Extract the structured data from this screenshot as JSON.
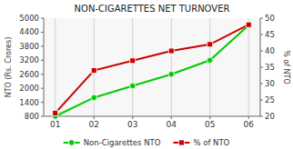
{
  "chart_data": {
    "type": "line",
    "title": "NON-CIGARETTES NET TURNOVER",
    "x": [
      1,
      2,
      3,
      4,
      5,
      6
    ],
    "xlim": [
      0.7,
      6.3
    ],
    "xticks": [
      {
        "value": 1,
        "label": "01"
      },
      {
        "value": 2,
        "label": "02"
      },
      {
        "value": 3,
        "label": "03"
      },
      {
        "value": 4,
        "label": "04"
      },
      {
        "value": 5,
        "label": "05"
      },
      {
        "value": 6,
        "label": "06"
      }
    ],
    "ylabel": "NTO (Rs. Crores)",
    "y2label": "% of NTO",
    "ylim": [
      800,
      5000
    ],
    "yticks": [
      800,
      1400,
      2000,
      2600,
      3200,
      3800,
      4400,
      5000
    ],
    "y2lim": [
      20,
      50
    ],
    "y2ticks": [
      20,
      25,
      30,
      35,
      40,
      45,
      50
    ],
    "grid": "x",
    "legend": "bottom",
    "series": [
      {
        "name": "Non-Cigarettes NTO",
        "color": "#00cc00",
        "marker": "circle",
        "values": [
          800,
          1600,
          2100,
          2600,
          3200,
          4700
        ]
      },
      {
        "name": "% of NTO",
        "color": "#cc0000",
        "marker": "square",
        "axis": "y2",
        "values": [
          21,
          34,
          37,
          40,
          42,
          48
        ]
      }
    ]
  }
}
